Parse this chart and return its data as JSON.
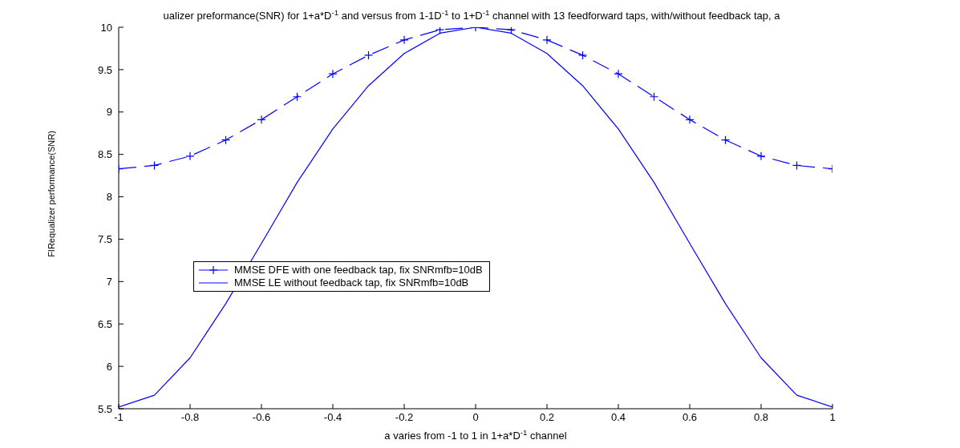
{
  "chart_data": {
    "type": "line",
    "title": "ualizer preformance(SNR) for 1+a*D$^{-1}$ and versus from 1-1D$^{-1}$ to 1+D$^{-1}$ channel with 13 feedforward taps, with/without feedback tap, a",
    "xlabel": "a varies from -1 to 1 in 1+a*D$^{-1}$ channel",
    "ylabel": "FIRequalizer performance(SNR)",
    "x": [
      -1,
      -0.9,
      -0.8,
      -0.7,
      -0.6,
      -0.5,
      -0.4,
      -0.3,
      -0.2,
      -0.1,
      0,
      0.1,
      0.2,
      0.3,
      0.4,
      0.5,
      0.6,
      0.7,
      0.8,
      0.9,
      1
    ],
    "series": [
      {
        "name": "MMSE DFE with one feedback tap, fix SNRmfb=10dB",
        "color": "#0000ff",
        "marker": "cross",
        "line_style": "dashed",
        "values": [
          8.33,
          8.37,
          8.48,
          8.67,
          8.91,
          9.18,
          9.45,
          9.67,
          9.85,
          9.97,
          10.0,
          9.97,
          9.85,
          9.67,
          9.45,
          9.18,
          8.91,
          8.67,
          8.48,
          8.37,
          8.33
        ]
      },
      {
        "name": "MMSE LE without feedback tap, fix SNRmfb=10dB",
        "color": "#0000ff",
        "marker": "none",
        "line_style": "solid",
        "values": [
          5.52,
          5.66,
          6.1,
          6.74,
          7.45,
          8.17,
          8.8,
          9.31,
          9.69,
          9.93,
          10.0,
          9.93,
          9.69,
          9.31,
          8.8,
          8.17,
          7.45,
          6.74,
          6.1,
          5.66,
          5.52
        ]
      }
    ],
    "xlim": [
      -1,
      1
    ],
    "xticks": [
      -1,
      -0.8,
      -0.6,
      -0.4,
      -0.2,
      0,
      0.2,
      0.4,
      0.6,
      0.8,
      1
    ],
    "ylim": [
      5.5,
      10
    ],
    "yticks": [
      5.5,
      6,
      6.5,
      7,
      7.5,
      8,
      8.5,
      9,
      9.5,
      10
    ],
    "grid": false,
    "legend": "left"
  }
}
